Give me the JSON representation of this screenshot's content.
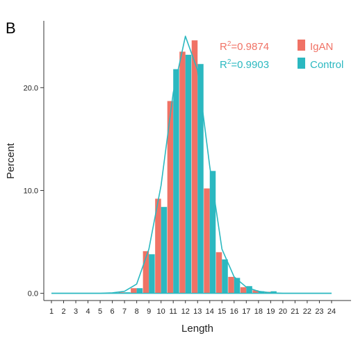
{
  "panel_label": "B",
  "colors": {
    "igan": "#f07265",
    "control": "#2bb8c0",
    "axis": "#333333"
  },
  "chart_data": {
    "type": "bar",
    "xlabel": "Length",
    "ylabel": "Percent",
    "categories": [
      "1",
      "2",
      "3",
      "4",
      "5",
      "6",
      "7",
      "8",
      "9",
      "10",
      "11",
      "12",
      "13",
      "14",
      "15",
      "16",
      "17",
      "18",
      "19",
      "20",
      "21",
      "22",
      "23",
      "24"
    ],
    "yticks": [
      "0.0",
      "10.0",
      "20.0"
    ],
    "ytick_values": [
      0,
      10,
      20
    ],
    "ylim": [
      -0.7,
      26.5
    ],
    "series": [
      {
        "name": "IgAN",
        "r2_prefix": "R",
        "r2_sup": "2",
        "r2_value": "=0.9874",
        "values": [
          0,
          0,
          0,
          0,
          0,
          0,
          0.1,
          0.5,
          4.1,
          9.2,
          18.7,
          23.5,
          24.6,
          10.2,
          4.0,
          1.6,
          0.6,
          0.3,
          0.15,
          0,
          0,
          0,
          0,
          0
        ]
      },
      {
        "name": "Control",
        "r2_prefix": "R",
        "r2_sup": "2",
        "r2_value": "=0.9903",
        "values": [
          0,
          0,
          0,
          0,
          0,
          0,
          0.1,
          0.5,
          3.8,
          8.4,
          21.8,
          23.2,
          22.3,
          11.9,
          3.3,
          1.5,
          0.7,
          0.2,
          0.2,
          0,
          0,
          0,
          0,
          0
        ]
      }
    ],
    "fit_line": {
      "series": "Control",
      "values": [
        0,
        0,
        0,
        0,
        0,
        0.05,
        0.2,
        0.9,
        4.3,
        10.5,
        19.5,
        25.0,
        21.7,
        12.3,
        4.3,
        1.6,
        0.6,
        0.2,
        0.05,
        0,
        0,
        0,
        0,
        0
      ]
    },
    "legend_position": "top-right",
    "grid": false
  }
}
